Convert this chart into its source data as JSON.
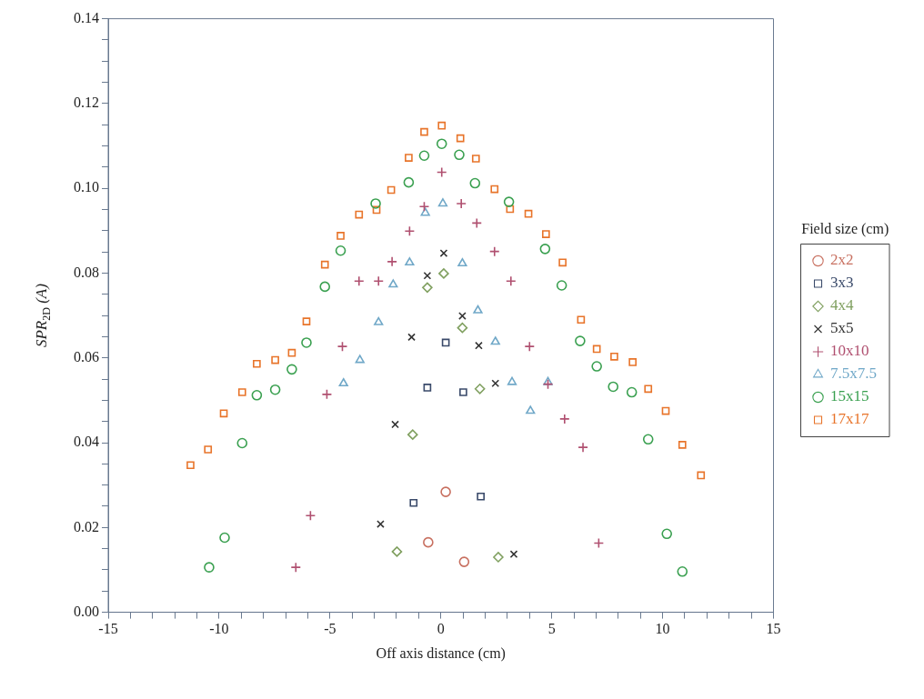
{
  "chart_data": {
    "type": "scatter",
    "xlabel": "Off axis distance (cm)",
    "ylabel": "SPR$_{2D}$ (A)",
    "legend_title": "Field size (cm)",
    "legend": "right",
    "grid": false,
    "xlim": [
      -15,
      15
    ],
    "ylim": [
      0,
      0.14
    ],
    "xticks": [
      -15,
      {
        "value": -14,
        "label": null
      },
      {
        "value": -13,
        "label": null
      },
      {
        "value": -12,
        "label": null
      },
      {
        "value": -11,
        "label": null
      },
      -10,
      {
        "value": -9,
        "label": null
      },
      {
        "value": -8,
        "label": null
      },
      {
        "value": -7,
        "label": null
      },
      {
        "value": -6,
        "label": null
      },
      -5,
      {
        "value": -4,
        "label": null
      },
      {
        "value": -3,
        "label": null
      },
      {
        "value": -2,
        "label": null
      },
      {
        "value": -1,
        "label": null
      },
      0,
      {
        "value": 1,
        "label": null
      },
      {
        "value": 2,
        "label": null
      },
      {
        "value": 3,
        "label": null
      },
      {
        "value": 4,
        "label": null
      },
      5,
      {
        "value": 6,
        "label": null
      },
      {
        "value": 7,
        "label": null
      },
      {
        "value": 8,
        "label": null
      },
      {
        "value": 9,
        "label": null
      },
      10,
      {
        "value": 11,
        "label": null
      },
      {
        "value": 12,
        "label": null
      },
      {
        "value": 13,
        "label": null
      },
      {
        "value": 14,
        "label": null
      },
      15
    ],
    "yticks": [
      {
        "value": 0,
        "label": "0.00"
      },
      {
        "value": 0.005,
        "label": null
      },
      {
        "value": 0.01,
        "label": null
      },
      {
        "value": 0.015,
        "label": null
      },
      {
        "value": 0.02,
        "label": "0.02"
      },
      {
        "value": 0.025,
        "label": null
      },
      {
        "value": 0.03,
        "label": null
      },
      {
        "value": 0.035,
        "label": null
      },
      {
        "value": 0.04,
        "label": "0.04"
      },
      {
        "value": 0.045,
        "label": null
      },
      {
        "value": 0.05,
        "label": null
      },
      {
        "value": 0.055,
        "label": null
      },
      {
        "value": 0.06,
        "label": "0.06"
      },
      {
        "value": 0.065,
        "label": null
      },
      {
        "value": 0.07,
        "label": null
      },
      {
        "value": 0.075,
        "label": null
      },
      {
        "value": 0.08,
        "label": "0.08"
      },
      {
        "value": 0.085,
        "label": null
      },
      {
        "value": 0.09,
        "label": null
      },
      {
        "value": 0.095,
        "label": null
      },
      {
        "value": 0.1,
        "label": "0.10"
      },
      {
        "value": 0.105,
        "label": null
      },
      {
        "value": 0.11,
        "label": null
      },
      {
        "value": 0.115,
        "label": null
      },
      {
        "value": 0.12,
        "label": "0.12"
      },
      {
        "value": 0.125,
        "label": null
      },
      {
        "value": 0.13,
        "label": null
      },
      {
        "value": 0.135,
        "label": null
      },
      {
        "value": 0.14,
        "label": "0.14"
      }
    ],
    "series": [
      {
        "name": "2x2",
        "color": "#c87060",
        "marker": "circle",
        "x": [
          -0.57,
          0.22,
          1.05
        ],
        "values": [
          0.0165,
          0.0284,
          0.0119
        ]
      },
      {
        "name": "3x3",
        "color": "#3a4a6a",
        "marker": "square",
        "x": [
          -1.23,
          -0.61,
          0.22,
          1.01,
          1.8
        ],
        "values": [
          0.0258,
          0.053,
          0.0636,
          0.0519,
          0.0273
        ]
      },
      {
        "name": "4x4",
        "color": "#80a060",
        "marker": "diamond",
        "x": [
          -1.98,
          -1.27,
          -0.61,
          0.13,
          0.97,
          1.76,
          2.59
        ],
        "values": [
          0.0143,
          0.0419,
          0.0766,
          0.0799,
          0.0671,
          0.0527,
          0.013
        ]
      },
      {
        "name": "5x5",
        "color": "#333333",
        "marker": "cross",
        "x": [
          -2.72,
          -2.06,
          -1.32,
          -0.61,
          0.13,
          0.97,
          1.71,
          2.46,
          3.29
        ],
        "values": [
          0.0208,
          0.0443,
          0.0649,
          0.0794,
          0.0847,
          0.0699,
          0.0629,
          0.054,
          0.0137
        ]
      },
      {
        "name": "10x10",
        "color": "#b05070",
        "marker": "plus",
        "x": [
          -6.54,
          -5.88,
          -5.14,
          -4.44,
          -3.69,
          -2.81,
          -2.2,
          -1.41,
          -0.75,
          0.04,
          0.92,
          1.62,
          2.42,
          3.16,
          4.0,
          4.83,
          5.58,
          6.41,
          7.12
        ],
        "values": [
          0.0106,
          0.0228,
          0.0514,
          0.0627,
          0.0781,
          0.0781,
          0.0827,
          0.0899,
          0.0957,
          0.1038,
          0.0964,
          0.0918,
          0.0851,
          0.0781,
          0.0627,
          0.0538,
          0.0456,
          0.0389,
          0.0163
        ]
      },
      {
        "name": "7.5x7.5",
        "color": "#70a8c8",
        "marker": "triangle",
        "x": [
          -4.39,
          -3.65,
          -2.81,
          -2.15,
          -1.41,
          -0.7,
          0.09,
          0.97,
          1.67,
          2.46,
          3.21,
          4.04,
          4.83
        ],
        "values": [
          0.054,
          0.0595,
          0.0684,
          0.0773,
          0.0825,
          0.0942,
          0.0964,
          0.0823,
          0.0712,
          0.0638,
          0.0543,
          0.0475,
          0.0543
        ]
      },
      {
        "name": "15x15",
        "color": "#3aa050",
        "marker": "circle",
        "x": [
          -10.45,
          -9.75,
          -8.96,
          -8.3,
          -7.47,
          -6.72,
          -6.06,
          -5.23,
          -4.52,
          -2.94,
          -1.45,
          -0.75,
          0.04,
          0.83,
          1.54,
          3.07,
          4.7,
          5.45,
          6.28,
          7.03,
          7.77,
          8.61,
          9.35,
          10.19,
          10.89
        ],
        "values": [
          0.0106,
          0.0176,
          0.0399,
          0.0512,
          0.0525,
          0.0573,
          0.0636,
          0.0768,
          0.0853,
          0.0964,
          0.1014,
          0.1077,
          0.1105,
          0.1079,
          0.1012,
          0.0968,
          0.0857,
          0.0771,
          0.064,
          0.058,
          0.0532,
          0.0519,
          0.0408,
          0.0185,
          0.0096
        ]
      },
      {
        "name": "17x17",
        "color": "#e8742a",
        "marker": "square",
        "x": [
          -11.29,
          -10.5,
          -9.79,
          -8.96,
          -8.3,
          -7.47,
          -6.72,
          -6.06,
          -5.23,
          -4.52,
          -3.69,
          -2.9,
          -2.24,
          -1.45,
          -0.75,
          0.04,
          0.88,
          1.58,
          2.42,
          3.12,
          3.95,
          4.74,
          5.49,
          6.32,
          7.03,
          7.82,
          8.65,
          9.35,
          10.14,
          10.89,
          11.73
        ],
        "values": [
          0.0347,
          0.0384,
          0.0469,
          0.0519,
          0.0586,
          0.0595,
          0.0612,
          0.0686,
          0.082,
          0.0888,
          0.0938,
          0.0949,
          0.0996,
          0.1072,
          0.1133,
          0.1148,
          0.1118,
          0.107,
          0.0998,
          0.0951,
          0.094,
          0.0892,
          0.0825,
          0.069,
          0.0621,
          0.0603,
          0.059,
          0.0527,
          0.0475,
          0.0395,
          0.0323
        ]
      }
    ]
  }
}
